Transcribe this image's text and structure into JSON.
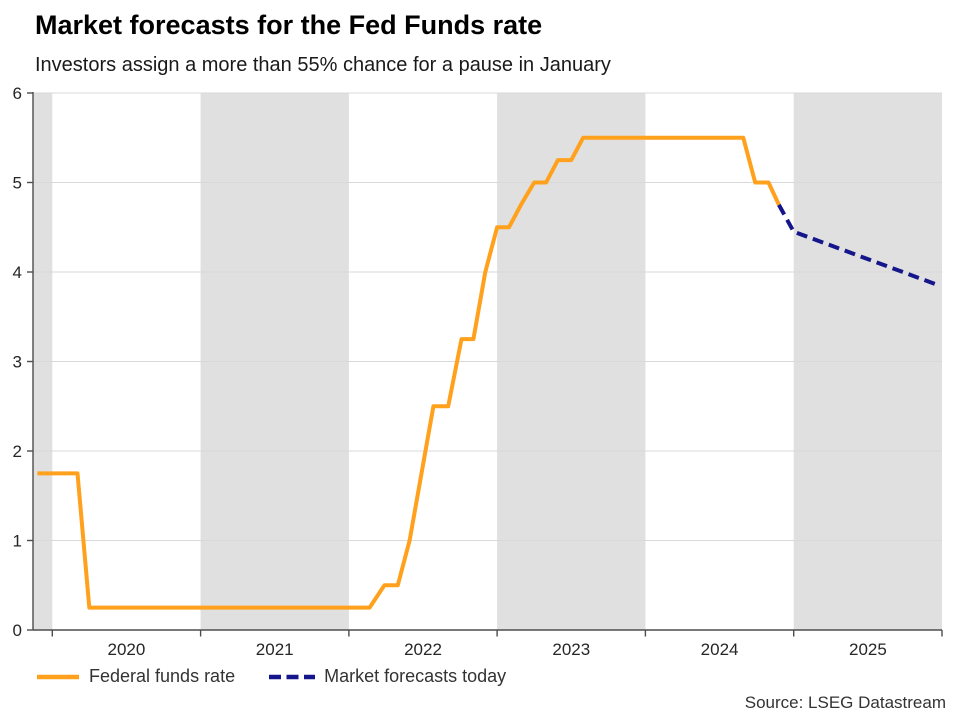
{
  "source_note": "Source: LSEG Datastream",
  "colors": {
    "band": "#e0e0e0",
    "gridline": "#d9d9d9",
    "axis": "#4d4d4d",
    "tick_text": "#262626",
    "title_text": "#000000",
    "subtitle_text": "#1a1a1a",
    "federal_funds_orange": "#ffa11c",
    "forecast_navy": "#15158c"
  },
  "chart_data": {
    "type": "line",
    "title": "Market forecasts for the Fed Funds rate",
    "subtitle": "Investors assign a more than 55% chance for a pause in January",
    "xlabel": "",
    "ylabel": "",
    "x_range": [
      2019.87,
      2026.0
    ],
    "ylim": [
      0,
      6
    ],
    "y_ticks": [
      0,
      1,
      2,
      3,
      4,
      5,
      6
    ],
    "x_axis_ticks_years": [
      2020,
      2021,
      2022,
      2023,
      2024,
      2025,
      2026
    ],
    "x_tick_labels": [
      "2020",
      "2021",
      "2022",
      "2023",
      "2024",
      "2025"
    ],
    "x_tick_label_positions": [
      2020.5,
      2021.5,
      2022.5,
      2023.5,
      2024.5,
      2025.5
    ],
    "grid": "horizontal",
    "legend_position": "bottom-left",
    "shaded_year_bands": [
      [
        2019.87,
        2020.0
      ],
      [
        2021.0,
        2022.0
      ],
      [
        2023.0,
        2024.0
      ],
      [
        2025.0,
        2026.0
      ]
    ],
    "series": [
      {
        "name": "Federal funds rate",
        "color": "#ffa11c",
        "style": "solid",
        "points": [
          [
            2019.9,
            1.75
          ],
          [
            2020.17,
            1.75
          ],
          [
            2020.25,
            0.25
          ],
          [
            2022.14,
            0.25
          ],
          [
            2022.24,
            0.5
          ],
          [
            2022.33,
            0.5
          ],
          [
            2022.41,
            1.0
          ],
          [
            2022.49,
            1.75
          ],
          [
            2022.57,
            2.5
          ],
          [
            2022.67,
            2.5
          ],
          [
            2022.76,
            3.25
          ],
          [
            2022.84,
            3.25
          ],
          [
            2022.92,
            4.0
          ],
          [
            2023.0,
            4.5
          ],
          [
            2023.08,
            4.5
          ],
          [
            2023.16,
            4.75
          ],
          [
            2023.25,
            5.0
          ],
          [
            2023.33,
            5.0
          ],
          [
            2023.41,
            5.25
          ],
          [
            2023.5,
            5.25
          ],
          [
            2023.58,
            5.5
          ],
          [
            2024.66,
            5.5
          ],
          [
            2024.74,
            5.0
          ],
          [
            2024.83,
            5.0
          ],
          [
            2024.9,
            4.75
          ]
        ]
      },
      {
        "name": "Market forecasts today",
        "color": "#15158c",
        "style": "dashed",
        "points": [
          [
            2024.9,
            4.75
          ],
          [
            2025.0,
            4.45
          ],
          [
            2025.98,
            3.85
          ]
        ]
      }
    ]
  }
}
